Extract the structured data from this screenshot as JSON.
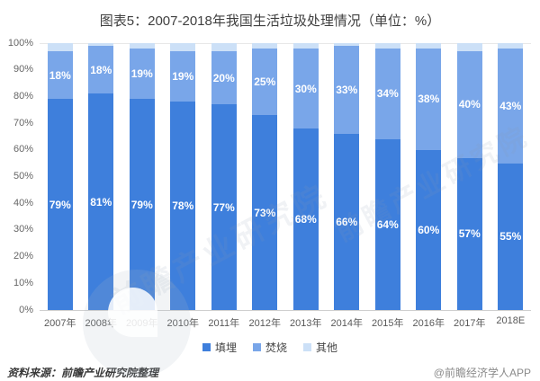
{
  "title": "图表5：2007-2018年我国生活垃圾处理情况（单位：%）",
  "chart_data": {
    "type": "bar",
    "stacked": true,
    "categories": [
      "2007年",
      "2008年",
      "2009年",
      "2010年",
      "2011年",
      "2012年",
      "2013年",
      "2014年",
      "2015年",
      "2016年",
      "2017年",
      "2018E"
    ],
    "series": [
      {
        "name": "填埋",
        "color": "#3e7fdc",
        "show_labels": true,
        "values": [
          79,
          81,
          79,
          78,
          77,
          73,
          68,
          66,
          64,
          60,
          57,
          55
        ]
      },
      {
        "name": "焚烧",
        "color": "#79a6e9",
        "show_labels": true,
        "values": [
          18,
          18,
          19,
          19,
          20,
          25,
          30,
          33,
          34,
          38,
          40,
          43
        ]
      },
      {
        "name": "其他",
        "color": "#cce0f7",
        "show_labels": false,
        "values": [
          3,
          1,
          2,
          3,
          3,
          2,
          2,
          1,
          2,
          2,
          3,
          2
        ]
      }
    ],
    "ylabel": "",
    "xlabel": "",
    "ylim": [
      0,
      100
    ],
    "yticks": [
      "0%",
      "10%",
      "20%",
      "30%",
      "40%",
      "50%",
      "60%",
      "70%",
      "80%",
      "90%",
      "100%"
    ],
    "grid": false,
    "legend_position": "bottom"
  },
  "footer": {
    "source": "资料来源：前瞻产业研究院整理",
    "credit": "@前瞻经济学人APP"
  },
  "watermark": {
    "text": "前瞻产业研究院"
  }
}
